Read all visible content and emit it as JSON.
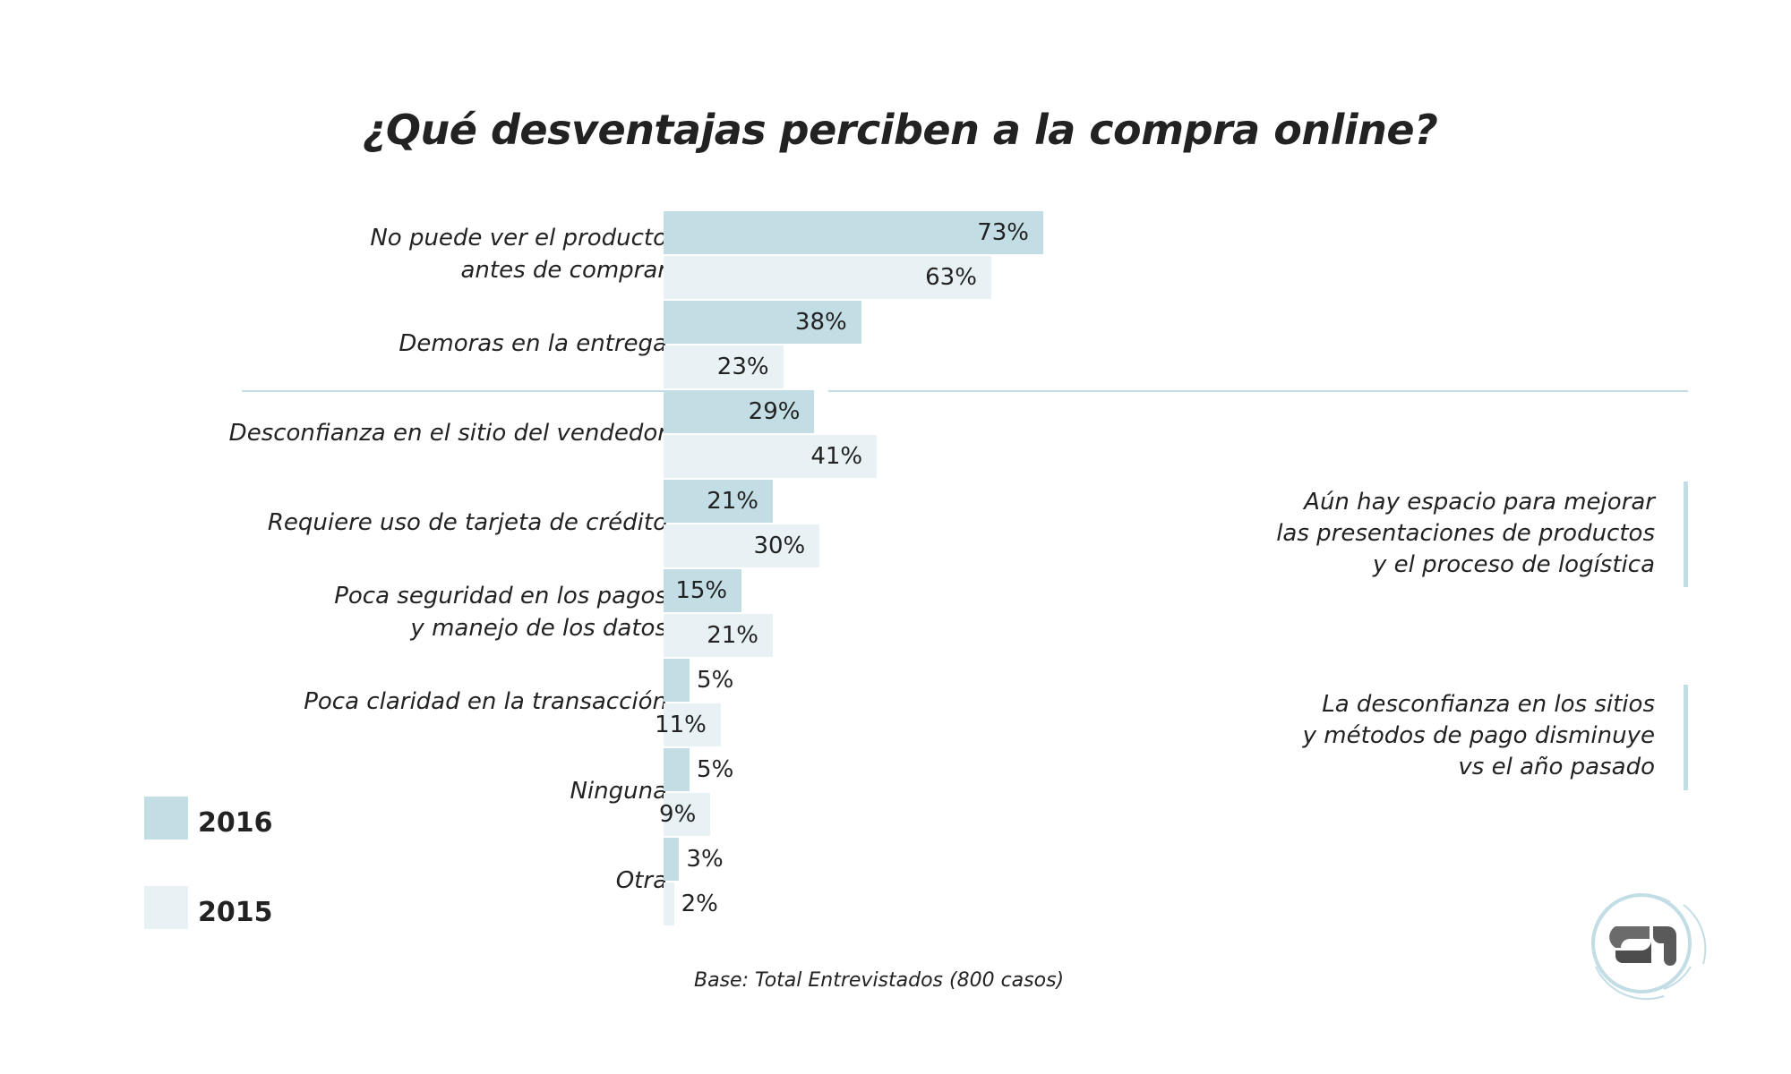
{
  "chart_data": {
    "type": "bar",
    "orientation": "horizontal",
    "title": "¿Qué desventajas perciben a la compra online?",
    "categories": [
      [
        "No puede ver el producto",
        "antes de comprar"
      ],
      [
        "Demoras en la entrega"
      ],
      [
        "Desconfianza en el sitio del vendedor"
      ],
      [
        "Requiere uso de tarjeta de crédito"
      ],
      [
        "Poca seguridad en los pagos",
        "y manejo de los datos"
      ],
      [
        "Poca claridad en la transacción"
      ],
      [
        "Ninguna"
      ],
      [
        "Otra"
      ]
    ],
    "series": [
      {
        "name": "2016",
        "color": "#c3dde5",
        "values": [
          73,
          38,
          29,
          21,
          15,
          5,
          5,
          3
        ]
      },
      {
        "name": "2015",
        "color": "#e8f2f5",
        "values": [
          63,
          23,
          41,
          30,
          21,
          11,
          9,
          2
        ]
      }
    ],
    "value_suffix": "%",
    "xlim": [
      0,
      100
    ],
    "grid": false,
    "legend": "bottom-left"
  },
  "annotations": [
    [
      "Aún hay espacio para mejorar",
      "las presentaciones de productos",
      "y el proceso de logística"
    ],
    [
      "La desconfianza en los sitios",
      "y métodos de pago disminuye",
      "vs el año pasado"
    ]
  ],
  "footnote": "Base: Total Entrevistados (800 casos)",
  "logo_text": "S1"
}
